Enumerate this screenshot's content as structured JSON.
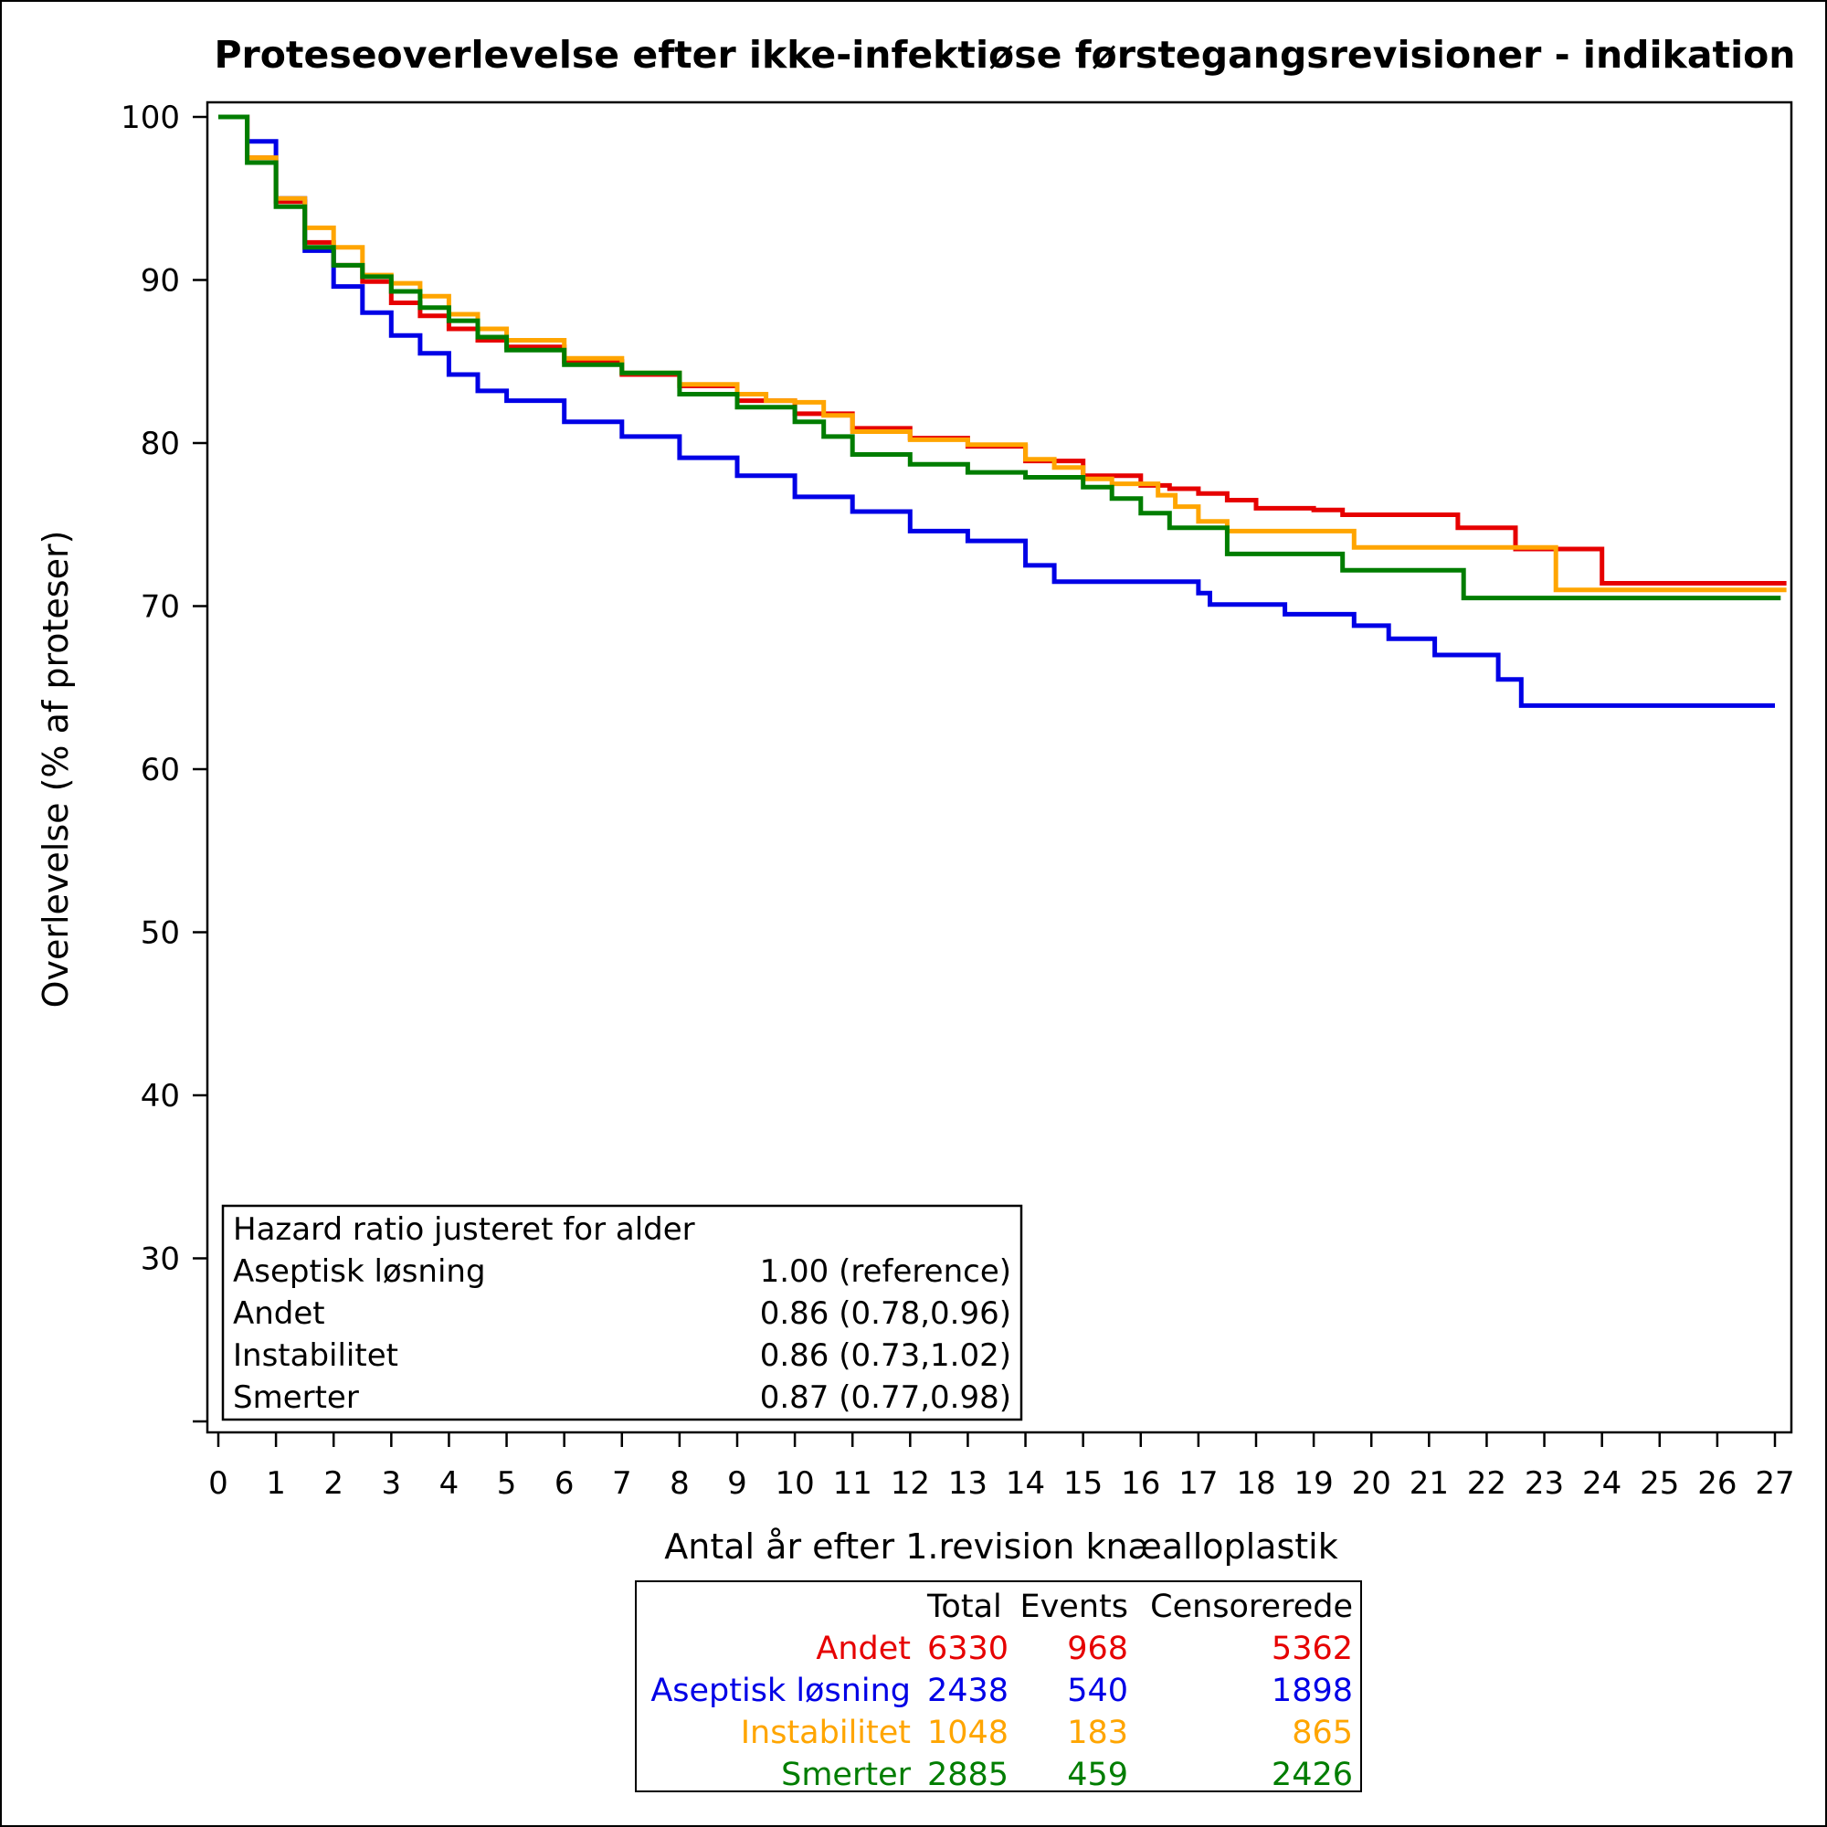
{
  "chart_data": {
    "type": "line",
    "step": true,
    "title": "Proteseoverlevelse efter ikke-infektiøse førstegangsrevisioner - indikation",
    "xlabel": "Antal år efter 1.revision knæalloplastik",
    "ylabel": "Overlevelse (% af proteser)",
    "xlim": [
      0,
      27
    ],
    "ylim": [
      20,
      100
    ],
    "x_ticks": [
      "0",
      "1",
      "2",
      "3",
      "4",
      "5",
      "6",
      "7",
      "8",
      "9",
      "10",
      "11",
      "12",
      "13",
      "14",
      "15",
      "16",
      "17",
      "18",
      "19",
      "20",
      "21",
      "22",
      "23",
      "24",
      "25",
      "26",
      "27"
    ],
    "y_ticks": [
      "30",
      "40",
      "50",
      "60",
      "70",
      "80",
      "90",
      "100"
    ],
    "grid": false,
    "legend": "none",
    "series": [
      {
        "name": "Andet",
        "color": "#e60000",
        "points": [
          [
            0,
            100
          ],
          [
            0.5,
            97.5
          ],
          [
            1,
            94.8
          ],
          [
            1.5,
            92.3
          ],
          [
            2,
            90.9
          ],
          [
            2.5,
            89.9
          ],
          [
            3,
            88.6
          ],
          [
            3.5,
            87.8
          ],
          [
            4,
            87.0
          ],
          [
            4.5,
            86.3
          ],
          [
            5,
            85.9
          ],
          [
            6,
            85.0
          ],
          [
            7,
            84.2
          ],
          [
            8,
            83.5
          ],
          [
            9,
            82.6
          ],
          [
            10,
            81.8
          ],
          [
            11,
            80.9
          ],
          [
            12,
            80.3
          ],
          [
            13,
            79.8
          ],
          [
            14,
            78.9
          ],
          [
            15,
            78.0
          ],
          [
            16,
            77.4
          ],
          [
            16.5,
            77.2
          ],
          [
            17,
            76.9
          ],
          [
            17.5,
            76.5
          ],
          [
            18,
            76.0
          ],
          [
            19,
            75.9
          ],
          [
            19.5,
            75.6
          ],
          [
            20,
            75.6
          ],
          [
            21,
            75.6
          ],
          [
            21.5,
            74.8
          ],
          [
            22,
            74.8
          ],
          [
            22.5,
            73.5
          ],
          [
            23,
            73.5
          ],
          [
            24,
            71.4
          ],
          [
            27.2,
            71.4
          ]
        ]
      },
      {
        "name": "Aseptisk løsning",
        "color": "#0000e6",
        "points": [
          [
            0,
            100
          ],
          [
            0.5,
            98.5
          ],
          [
            1,
            95.0
          ],
          [
            1.5,
            91.8
          ],
          [
            2,
            89.6
          ],
          [
            2.5,
            88.0
          ],
          [
            3,
            86.6
          ],
          [
            3.5,
            85.5
          ],
          [
            4,
            84.2
          ],
          [
            4.5,
            83.2
          ],
          [
            5,
            82.6
          ],
          [
            6,
            81.3
          ],
          [
            7,
            80.4
          ],
          [
            8,
            79.1
          ],
          [
            9,
            78.0
          ],
          [
            10,
            76.7
          ],
          [
            11,
            75.8
          ],
          [
            12,
            74.6
          ],
          [
            13,
            74.0
          ],
          [
            14,
            72.5
          ],
          [
            14.5,
            71.5
          ],
          [
            15,
            71.5
          ],
          [
            16.5,
            71.5
          ],
          [
            17,
            70.8
          ],
          [
            17.2,
            70.1
          ],
          [
            18,
            70.1
          ],
          [
            18.5,
            69.5
          ],
          [
            19,
            69.5
          ],
          [
            19.7,
            68.8
          ],
          [
            20.3,
            68.0
          ],
          [
            21.1,
            67.0
          ],
          [
            22,
            67.0
          ],
          [
            22.2,
            65.5
          ],
          [
            22.6,
            63.9
          ],
          [
            27,
            63.9
          ]
        ]
      },
      {
        "name": "Instabilitet",
        "color": "#ffa500",
        "points": [
          [
            0,
            100
          ],
          [
            0.5,
            97.5
          ],
          [
            1,
            95.0
          ],
          [
            1.5,
            93.2
          ],
          [
            2,
            92.0
          ],
          [
            2.5,
            90.3
          ],
          [
            3,
            89.8
          ],
          [
            3.5,
            89.0
          ],
          [
            4,
            87.9
          ],
          [
            4.5,
            87.0
          ],
          [
            5,
            86.3
          ],
          [
            6,
            85.2
          ],
          [
            7,
            84.3
          ],
          [
            8,
            83.6
          ],
          [
            9,
            83.0
          ],
          [
            9.5,
            82.6
          ],
          [
            10,
            82.5
          ],
          [
            10.5,
            81.7
          ],
          [
            11,
            80.7
          ],
          [
            12,
            80.2
          ],
          [
            13,
            79.9
          ],
          [
            14,
            79.0
          ],
          [
            14.5,
            78.5
          ],
          [
            15,
            77.8
          ],
          [
            15.5,
            77.5
          ],
          [
            16,
            77.5
          ],
          [
            16.3,
            76.8
          ],
          [
            16.6,
            76.1
          ],
          [
            17,
            75.2
          ],
          [
            17.5,
            74.6
          ],
          [
            18,
            74.6
          ],
          [
            19,
            74.6
          ],
          [
            19.7,
            73.6
          ],
          [
            20,
            73.6
          ],
          [
            21,
            73.6
          ],
          [
            22,
            73.6
          ],
          [
            23,
            73.6
          ],
          [
            23.2,
            71.0
          ],
          [
            24,
            71.0
          ],
          [
            27.2,
            71.0
          ]
        ]
      },
      {
        "name": "Smerter",
        "color": "#007d00",
        "points": [
          [
            0,
            100
          ],
          [
            0.5,
            97.2
          ],
          [
            1,
            94.5
          ],
          [
            1.5,
            92.0
          ],
          [
            2,
            90.9
          ],
          [
            2.5,
            90.2
          ],
          [
            3,
            89.3
          ],
          [
            3.5,
            88.3
          ],
          [
            4,
            87.5
          ],
          [
            4.5,
            86.5
          ],
          [
            5,
            85.7
          ],
          [
            6,
            84.8
          ],
          [
            7,
            84.3
          ],
          [
            8,
            83.0
          ],
          [
            9,
            82.2
          ],
          [
            10,
            81.3
          ],
          [
            10.5,
            80.4
          ],
          [
            11,
            79.3
          ],
          [
            12,
            78.7
          ],
          [
            13,
            78.2
          ],
          [
            14,
            77.9
          ],
          [
            15,
            77.3
          ],
          [
            15.5,
            76.6
          ],
          [
            16,
            75.7
          ],
          [
            16.5,
            74.8
          ],
          [
            17,
            74.8
          ],
          [
            17.5,
            73.6
          ],
          [
            17.5,
            73.2
          ],
          [
            18,
            73.2
          ],
          [
            19,
            73.2
          ],
          [
            19.5,
            72.2
          ],
          [
            20,
            72.2
          ],
          [
            21,
            72.2
          ],
          [
            21.6,
            70.5
          ],
          [
            22,
            70.5
          ],
          [
            27.1,
            70.5
          ]
        ]
      }
    ]
  },
  "hazard_box": {
    "title": "Hazard ratio justeret for alder",
    "rows": [
      {
        "label": "Aseptisk løsning",
        "value": "1.00 (reference)"
      },
      {
        "label": "Andet",
        "value": "0.86 (0.78,0.96)"
      },
      {
        "label": "Instabilitet",
        "value": "0.86 (0.73,1.02)"
      },
      {
        "label": "Smerter",
        "value": "0.87 (0.77,0.98)"
      }
    ]
  },
  "summary_table": {
    "headers": {
      "total": "Total",
      "events": "Events",
      "censored": "Censorerede"
    },
    "rows": [
      {
        "name": "Andet",
        "total": "6330",
        "events": "968",
        "censored": "5362",
        "color": "#e60000"
      },
      {
        "name": "Aseptisk løsning",
        "total": "2438",
        "events": "540",
        "censored": "1898",
        "color": "#0000e6"
      },
      {
        "name": "Instabilitet",
        "total": "1048",
        "events": "183",
        "censored": "865",
        "color": "#ffa500"
      },
      {
        "name": "Smerter",
        "total": "2885",
        "events": "459",
        "censored": "2426",
        "color": "#007d00"
      }
    ]
  }
}
